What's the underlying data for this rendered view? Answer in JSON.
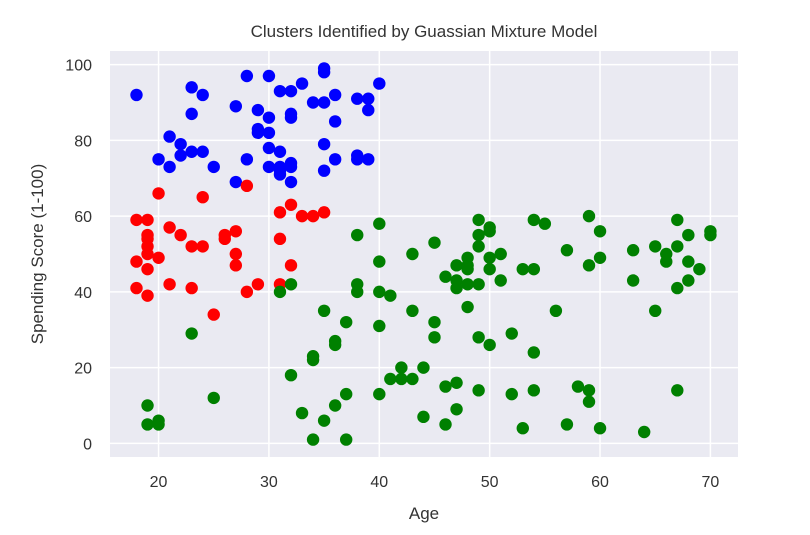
{
  "chart_data": {
    "type": "scatter",
    "title": "Clusters Identified by Guassian Mixture Model",
    "xlabel": "Age",
    "ylabel": "Spending Score (1-100)",
    "xlim": [
      15.6,
      72.5
    ],
    "ylim": [
      -3.6,
      103.6
    ],
    "xticks": [
      20,
      30,
      40,
      50,
      60,
      70
    ],
    "yticks": [
      0,
      20,
      40,
      60,
      80,
      100
    ],
    "grid": true,
    "legend": null,
    "background": "#EAEAF2",
    "series": [
      {
        "name": "Cluster (blue)",
        "color": "#0000FF",
        "points": [
          [
            18,
            92
          ],
          [
            20,
            75
          ],
          [
            21,
            81
          ],
          [
            21,
            73
          ],
          [
            22,
            79
          ],
          [
            22,
            76
          ],
          [
            23,
            94
          ],
          [
            23,
            77
          ],
          [
            23,
            87
          ],
          [
            24,
            92
          ],
          [
            24,
            77
          ],
          [
            25,
            73
          ],
          [
            27,
            89
          ],
          [
            27,
            69
          ],
          [
            28,
            97
          ],
          [
            28,
            75
          ],
          [
            29,
            88
          ],
          [
            29,
            82
          ],
          [
            29,
            83
          ],
          [
            30,
            97
          ],
          [
            30,
            73
          ],
          [
            30,
            86
          ],
          [
            30,
            78
          ],
          [
            30,
            82
          ],
          [
            31,
            93
          ],
          [
            31,
            72
          ],
          [
            31,
            77
          ],
          [
            31,
            71
          ],
          [
            31,
            73
          ],
          [
            32,
            93
          ],
          [
            32,
            86
          ],
          [
            32,
            87
          ],
          [
            32,
            74
          ],
          [
            32,
            73
          ],
          [
            32,
            69
          ],
          [
            33,
            95
          ],
          [
            34,
            90
          ],
          [
            35,
            98
          ],
          [
            35,
            99
          ],
          [
            35,
            90
          ],
          [
            35,
            79
          ],
          [
            35,
            72
          ],
          [
            36,
            92
          ],
          [
            36,
            85
          ],
          [
            36,
            75
          ],
          [
            38,
            91
          ],
          [
            38,
            76
          ],
          [
            38,
            75
          ],
          [
            39,
            91
          ],
          [
            39,
            88
          ],
          [
            39,
            75
          ],
          [
            40,
            95
          ]
        ]
      },
      {
        "name": "Cluster (red)",
        "color": "#FF0000",
        "points": [
          [
            18,
            59
          ],
          [
            18,
            48
          ],
          [
            18,
            41
          ],
          [
            19,
            59
          ],
          [
            19,
            55
          ],
          [
            19,
            54
          ],
          [
            19,
            52
          ],
          [
            19,
            50
          ],
          [
            19,
            46
          ],
          [
            19,
            39
          ],
          [
            20,
            66
          ],
          [
            20,
            49
          ],
          [
            21,
            57
          ],
          [
            21,
            42
          ],
          [
            22,
            55
          ],
          [
            23,
            52
          ],
          [
            23,
            41
          ],
          [
            24,
            65
          ],
          [
            24,
            52
          ],
          [
            25,
            34
          ],
          [
            26,
            55
          ],
          [
            26,
            54
          ],
          [
            27,
            56
          ],
          [
            27,
            50
          ],
          [
            27,
            47
          ],
          [
            28,
            68
          ],
          [
            28,
            40
          ],
          [
            29,
            42
          ],
          [
            31,
            61
          ],
          [
            31,
            54
          ],
          [
            31,
            42
          ],
          [
            32,
            63
          ],
          [
            32,
            47
          ],
          [
            33,
            60
          ],
          [
            34,
            60
          ],
          [
            35,
            61
          ]
        ]
      },
      {
        "name": "Cluster (green)",
        "color": "#008000",
        "points": [
          [
            19,
            10
          ],
          [
            19,
            5
          ],
          [
            20,
            6
          ],
          [
            20,
            5
          ],
          [
            23,
            29
          ],
          [
            25,
            12
          ],
          [
            31,
            40
          ],
          [
            32,
            42
          ],
          [
            32,
            18
          ],
          [
            33,
            8
          ],
          [
            34,
            23
          ],
          [
            34,
            22
          ],
          [
            34,
            1
          ],
          [
            35,
            35
          ],
          [
            35,
            6
          ],
          [
            36,
            27
          ],
          [
            36,
            26
          ],
          [
            36,
            10
          ],
          [
            37,
            32
          ],
          [
            37,
            13
          ],
          [
            37,
            1
          ],
          [
            38,
            55
          ],
          [
            38,
            42
          ],
          [
            38,
            40
          ],
          [
            40,
            58
          ],
          [
            40,
            48
          ],
          [
            40,
            40
          ],
          [
            40,
            31
          ],
          [
            40,
            13
          ],
          [
            41,
            39
          ],
          [
            41,
            17
          ],
          [
            42,
            20
          ],
          [
            42,
            17
          ],
          [
            43,
            50
          ],
          [
            43,
            35
          ],
          [
            43,
            17
          ],
          [
            44,
            20
          ],
          [
            44,
            7
          ],
          [
            45,
            53
          ],
          [
            45,
            32
          ],
          [
            45,
            28
          ],
          [
            46,
            44
          ],
          [
            46,
            15
          ],
          [
            46,
            5
          ],
          [
            47,
            47
          ],
          [
            47,
            43
          ],
          [
            47,
            41
          ],
          [
            47,
            16
          ],
          [
            47,
            9
          ],
          [
            48,
            49
          ],
          [
            48,
            47
          ],
          [
            48,
            46
          ],
          [
            48,
            42
          ],
          [
            48,
            36
          ],
          [
            49,
            59
          ],
          [
            49,
            55
          ],
          [
            49,
            52
          ],
          [
            49,
            42
          ],
          [
            49,
            28
          ],
          [
            49,
            14
          ],
          [
            50,
            57
          ],
          [
            50,
            56
          ],
          [
            50,
            49
          ],
          [
            50,
            46
          ],
          [
            50,
            26
          ],
          [
            51,
            50
          ],
          [
            51,
            43
          ],
          [
            52,
            29
          ],
          [
            52,
            13
          ],
          [
            53,
            46
          ],
          [
            53,
            4
          ],
          [
            54,
            59
          ],
          [
            54,
            46
          ],
          [
            54,
            24
          ],
          [
            54,
            14
          ],
          [
            55,
            58
          ],
          [
            56,
            35
          ],
          [
            57,
            51
          ],
          [
            57,
            5
          ],
          [
            58,
            15
          ],
          [
            59,
            60
          ],
          [
            59,
            47
          ],
          [
            59,
            14
          ],
          [
            59,
            11
          ],
          [
            60,
            56
          ],
          [
            60,
            49
          ],
          [
            60,
            4
          ],
          [
            63,
            51
          ],
          [
            63,
            43
          ],
          [
            64,
            3
          ],
          [
            65,
            52
          ],
          [
            65,
            35
          ],
          [
            66,
            50
          ],
          [
            66,
            48
          ],
          [
            67,
            59
          ],
          [
            67,
            52
          ],
          [
            67,
            41
          ],
          [
            67,
            14
          ],
          [
            68,
            55
          ],
          [
            68,
            48
          ],
          [
            68,
            43
          ],
          [
            69,
            46
          ],
          [
            70,
            56
          ],
          [
            70,
            55
          ]
        ]
      }
    ]
  }
}
